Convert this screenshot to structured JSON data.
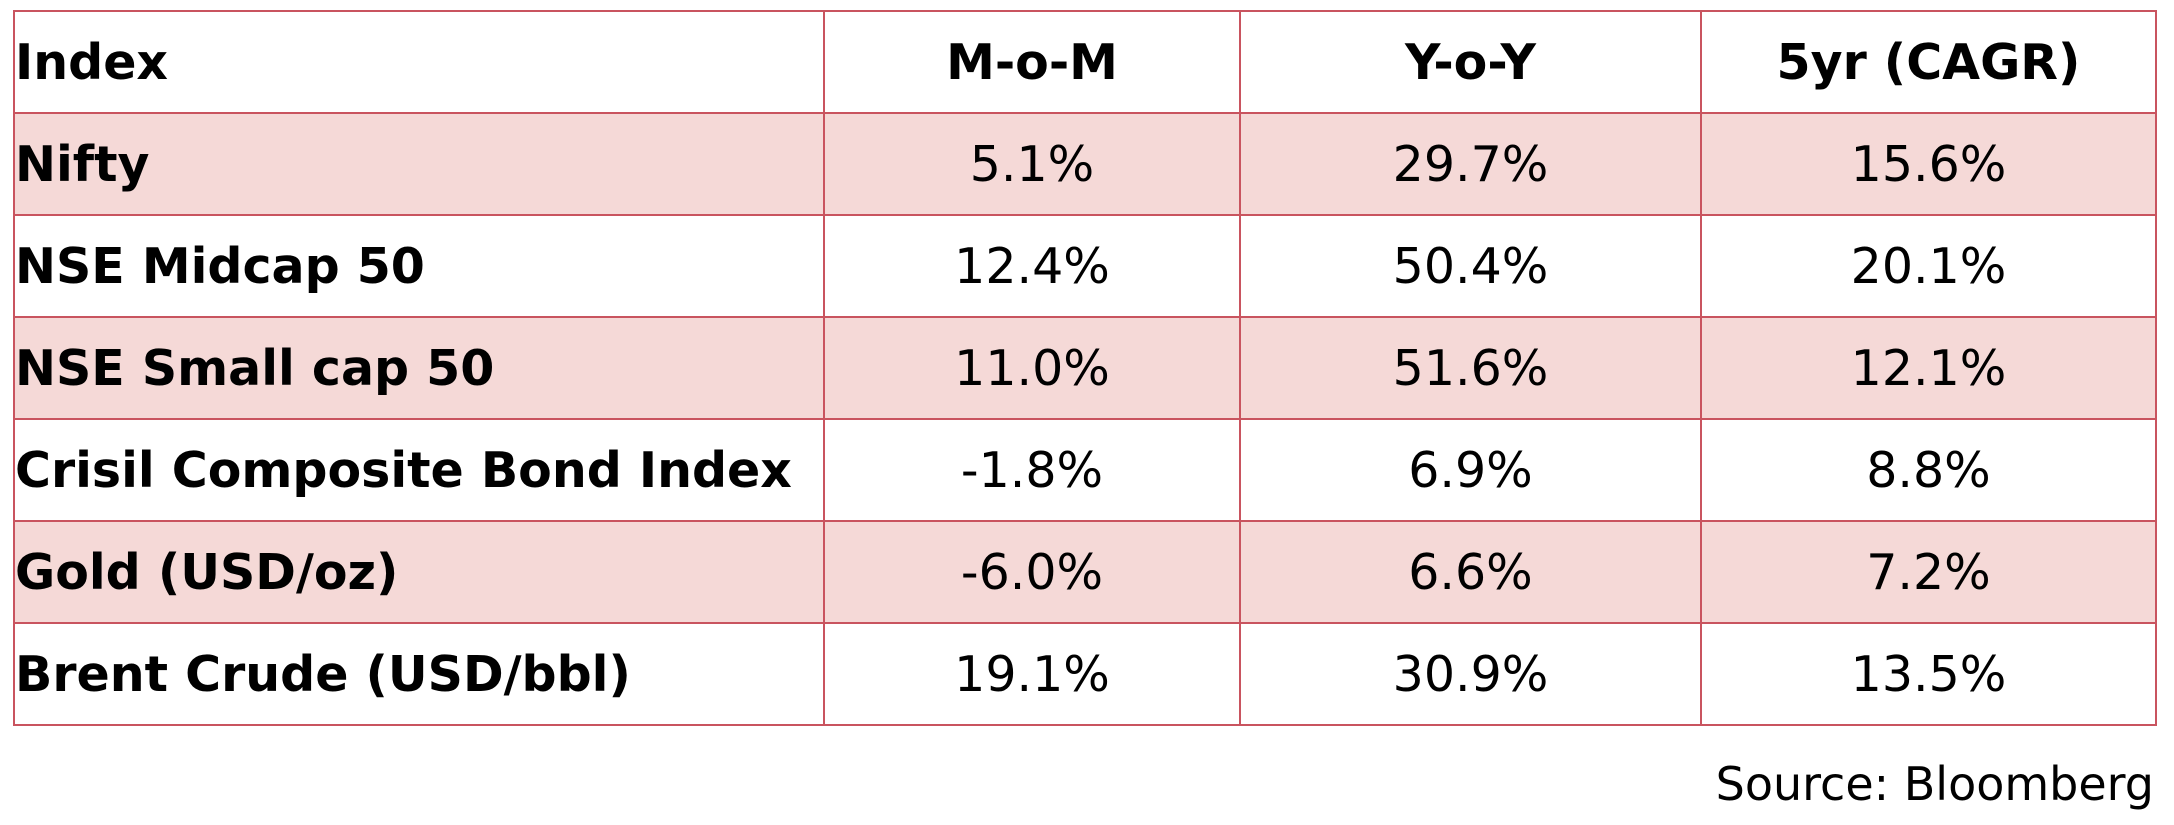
{
  "table": {
    "headers": [
      "Index",
      "M-o-M",
      "Y-o-Y",
      "5yr (CAGR)"
    ],
    "rows": [
      {
        "index": "Nifty",
        "mom": "5.1%",
        "yoy": "29.7%",
        "cagr5": "15.6%"
      },
      {
        "index": "NSE Midcap 50",
        "mom": "12.4%",
        "yoy": "50.4%",
        "cagr5": "20.1%"
      },
      {
        "index": "NSE Small cap 50",
        "mom": "11.0%",
        "yoy": "51.6%",
        "cagr5": "12.1%"
      },
      {
        "index": "Crisil Composite Bond Index",
        "mom": "-1.8%",
        "yoy": "6.9%",
        "cagr5": "8.8%"
      },
      {
        "index": "Gold (USD/oz)",
        "mom": "-6.0%",
        "yoy": "6.6%",
        "cagr5": "7.2%"
      },
      {
        "index": "Brent Crude (USD/bbl)",
        "mom": "19.1%",
        "yoy": "30.9%",
        "cagr5": "13.5%"
      }
    ]
  },
  "source": "Source: Bloomberg",
  "colors": {
    "border": "#c9545f",
    "shaded_row": "#f5d9d7"
  }
}
